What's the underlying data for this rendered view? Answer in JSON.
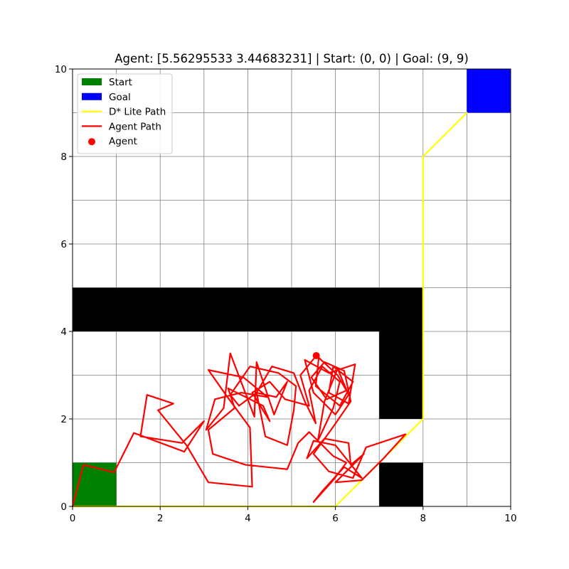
{
  "chart_data": {
    "type": "line",
    "title": "Agent: [5.56295533 3.44683231] | Start: (0, 0) | Goal: (9, 9)",
    "xlabel": "",
    "ylabel": "",
    "xlim": [
      0,
      10
    ],
    "ylim": [
      0,
      10
    ],
    "xticks": [
      0,
      2,
      4,
      6,
      8,
      10
    ],
    "yticks": [
      0,
      2,
      4,
      6,
      8,
      10
    ],
    "xtick_labels": [
      "0",
      "2",
      "4",
      "6",
      "8",
      "10"
    ],
    "ytick_labels": [
      "0",
      "2",
      "4",
      "6",
      "8",
      "10"
    ],
    "grid": true,
    "grid_color": "#808080",
    "legend_position": "top-left",
    "cells": [
      {
        "name": "Start",
        "x": 0,
        "y": 0,
        "w": 1,
        "h": 1,
        "color": "#008000"
      },
      {
        "name": "Goal",
        "x": 9,
        "y": 9,
        "w": 1,
        "h": 1,
        "color": "#0000ff"
      }
    ],
    "obstacles": [
      {
        "x": 0,
        "y": 4,
        "w": 8,
        "h": 1,
        "color": "#000000"
      },
      {
        "x": 7,
        "y": 2,
        "w": 1,
        "h": 2,
        "color": "#000000"
      },
      {
        "x": 7,
        "y": 0,
        "w": 1,
        "h": 1,
        "color": "#000000"
      }
    ],
    "series": [
      {
        "name": "D* Lite Path",
        "color": "#ffff00",
        "points": [
          [
            0,
            0
          ],
          [
            6,
            0
          ],
          [
            8,
            2
          ],
          [
            8,
            8
          ],
          [
            9,
            9
          ]
        ]
      },
      {
        "name": "Agent Path",
        "color": "#ff0000",
        "points": [
          [
            0.0,
            0.0
          ],
          [
            0.25,
            0.95
          ],
          [
            0.95,
            0.78
          ],
          [
            1.4,
            1.68
          ],
          [
            2.55,
            1.25
          ],
          [
            3.0,
            1.95
          ],
          [
            2.5,
            1.45
          ],
          [
            1.55,
            1.6
          ],
          [
            1.7,
            2.55
          ],
          [
            2.3,
            2.35
          ],
          [
            1.95,
            2.2
          ],
          [
            2.6,
            1.4
          ],
          [
            3.1,
            0.55
          ],
          [
            4.1,
            0.45
          ],
          [
            4.05,
            1.8
          ],
          [
            3.5,
            2.55
          ],
          [
            3.1,
            3.12
          ],
          [
            3.9,
            2.95
          ],
          [
            4.45,
            2.5
          ],
          [
            3.85,
            2.6
          ],
          [
            3.25,
            2.45
          ],
          [
            3.05,
            1.75
          ],
          [
            3.45,
            2.25
          ],
          [
            3.6,
            3.5
          ],
          [
            4.15,
            2.05
          ],
          [
            4.2,
            3.3
          ],
          [
            4.6,
            2.1
          ],
          [
            4.9,
            2.85
          ],
          [
            4.65,
            2.5
          ],
          [
            4.2,
            2.6
          ],
          [
            3.8,
            2.3
          ],
          [
            3.6,
            2.55
          ],
          [
            4.05,
            3.2
          ],
          [
            4.7,
            3.05
          ],
          [
            5.1,
            2.75
          ],
          [
            5.05,
            2.2
          ],
          [
            4.9,
            1.4
          ],
          [
            4.4,
            1.6
          ],
          [
            4.2,
            2.6
          ],
          [
            4.55,
            3.2
          ],
          [
            5.05,
            3.05
          ],
          [
            5.3,
            2.4
          ],
          [
            5.55,
            1.9
          ],
          [
            5.4,
            2.65
          ],
          [
            5.7,
            3.2
          ],
          [
            6.1,
            2.85
          ],
          [
            5.95,
            2.25
          ],
          [
            5.6,
            1.5
          ],
          [
            5.75,
            2.4
          ],
          [
            6.05,
            3.15
          ],
          [
            6.3,
            2.55
          ],
          [
            6.0,
            2.1
          ],
          [
            5.5,
            2.6
          ],
          [
            5.3,
            3.35
          ],
          [
            5.85,
            3.05
          ],
          [
            6.45,
            3.25
          ],
          [
            6.3,
            2.35
          ],
          [
            5.85,
            2.6
          ],
          [
            5.95,
            3.2
          ],
          [
            6.4,
            2.85
          ],
          [
            6.1,
            2.3
          ],
          [
            5.55,
            2.75
          ],
          [
            5.62,
            3.4
          ],
          [
            6.05,
            3.0
          ],
          [
            6.25,
            2.65
          ],
          [
            5.8,
            2.45
          ],
          [
            5.45,
            2.95
          ],
          [
            5.75,
            3.3
          ],
          [
            6.2,
            3.1
          ],
          [
            6.35,
            2.4
          ],
          [
            5.9,
            1.75
          ],
          [
            5.5,
            1.2
          ],
          [
            5.85,
            0.8
          ],
          [
            6.4,
            0.65
          ],
          [
            6.7,
            1.35
          ],
          [
            7.6,
            1.65
          ],
          [
            7.1,
            1.1
          ],
          [
            6.6,
            0.6
          ],
          [
            6.0,
            0.55
          ],
          [
            6.65,
            1.2
          ],
          [
            6.35,
            0.95
          ],
          [
            6.3,
            1.45
          ],
          [
            5.75,
            1.55
          ],
          [
            5.35,
            1.1
          ],
          [
            5.5,
            1.5
          ],
          [
            6.0,
            1.4
          ],
          [
            6.6,
            0.65
          ],
          [
            6.2,
            0.9
          ],
          [
            5.7,
            0.35
          ],
          [
            5.5,
            0.1
          ],
          [
            5.95,
            0.6
          ],
          [
            6.25,
            1.0
          ],
          [
            5.95,
            1.15
          ],
          [
            5.4,
            1.7
          ],
          [
            5.15,
            1.45
          ],
          [
            4.9,
            0.85
          ],
          [
            3.95,
            0.95
          ],
          [
            3.2,
            1.2
          ],
          [
            3.1,
            1.75
          ],
          [
            3.7,
            2.25
          ],
          [
            3.55,
            2.7
          ],
          [
            4.35,
            2.3
          ],
          [
            4.5,
            1.95
          ],
          [
            4.1,
            2.6
          ],
          [
            4.5,
            2.85
          ],
          [
            4.85,
            2.45
          ],
          [
            5.4,
            2.3
          ],
          [
            5.2,
            3.0
          ],
          [
            5.56295533,
            3.44683231
          ]
        ]
      }
    ],
    "agent": {
      "name": "Agent",
      "x": 5.56295533,
      "y": 3.44683231,
      "color": "#ff0000"
    },
    "legend": [
      {
        "label": "Start",
        "kind": "patch",
        "color": "#008000"
      },
      {
        "label": "Goal",
        "kind": "patch",
        "color": "#0000ff"
      },
      {
        "label": "D* Lite Path",
        "kind": "line",
        "color": "#ffff00"
      },
      {
        "label": "Agent Path",
        "kind": "line",
        "color": "#ff0000"
      },
      {
        "label": "Agent",
        "kind": "marker",
        "color": "#ff0000"
      }
    ]
  }
}
